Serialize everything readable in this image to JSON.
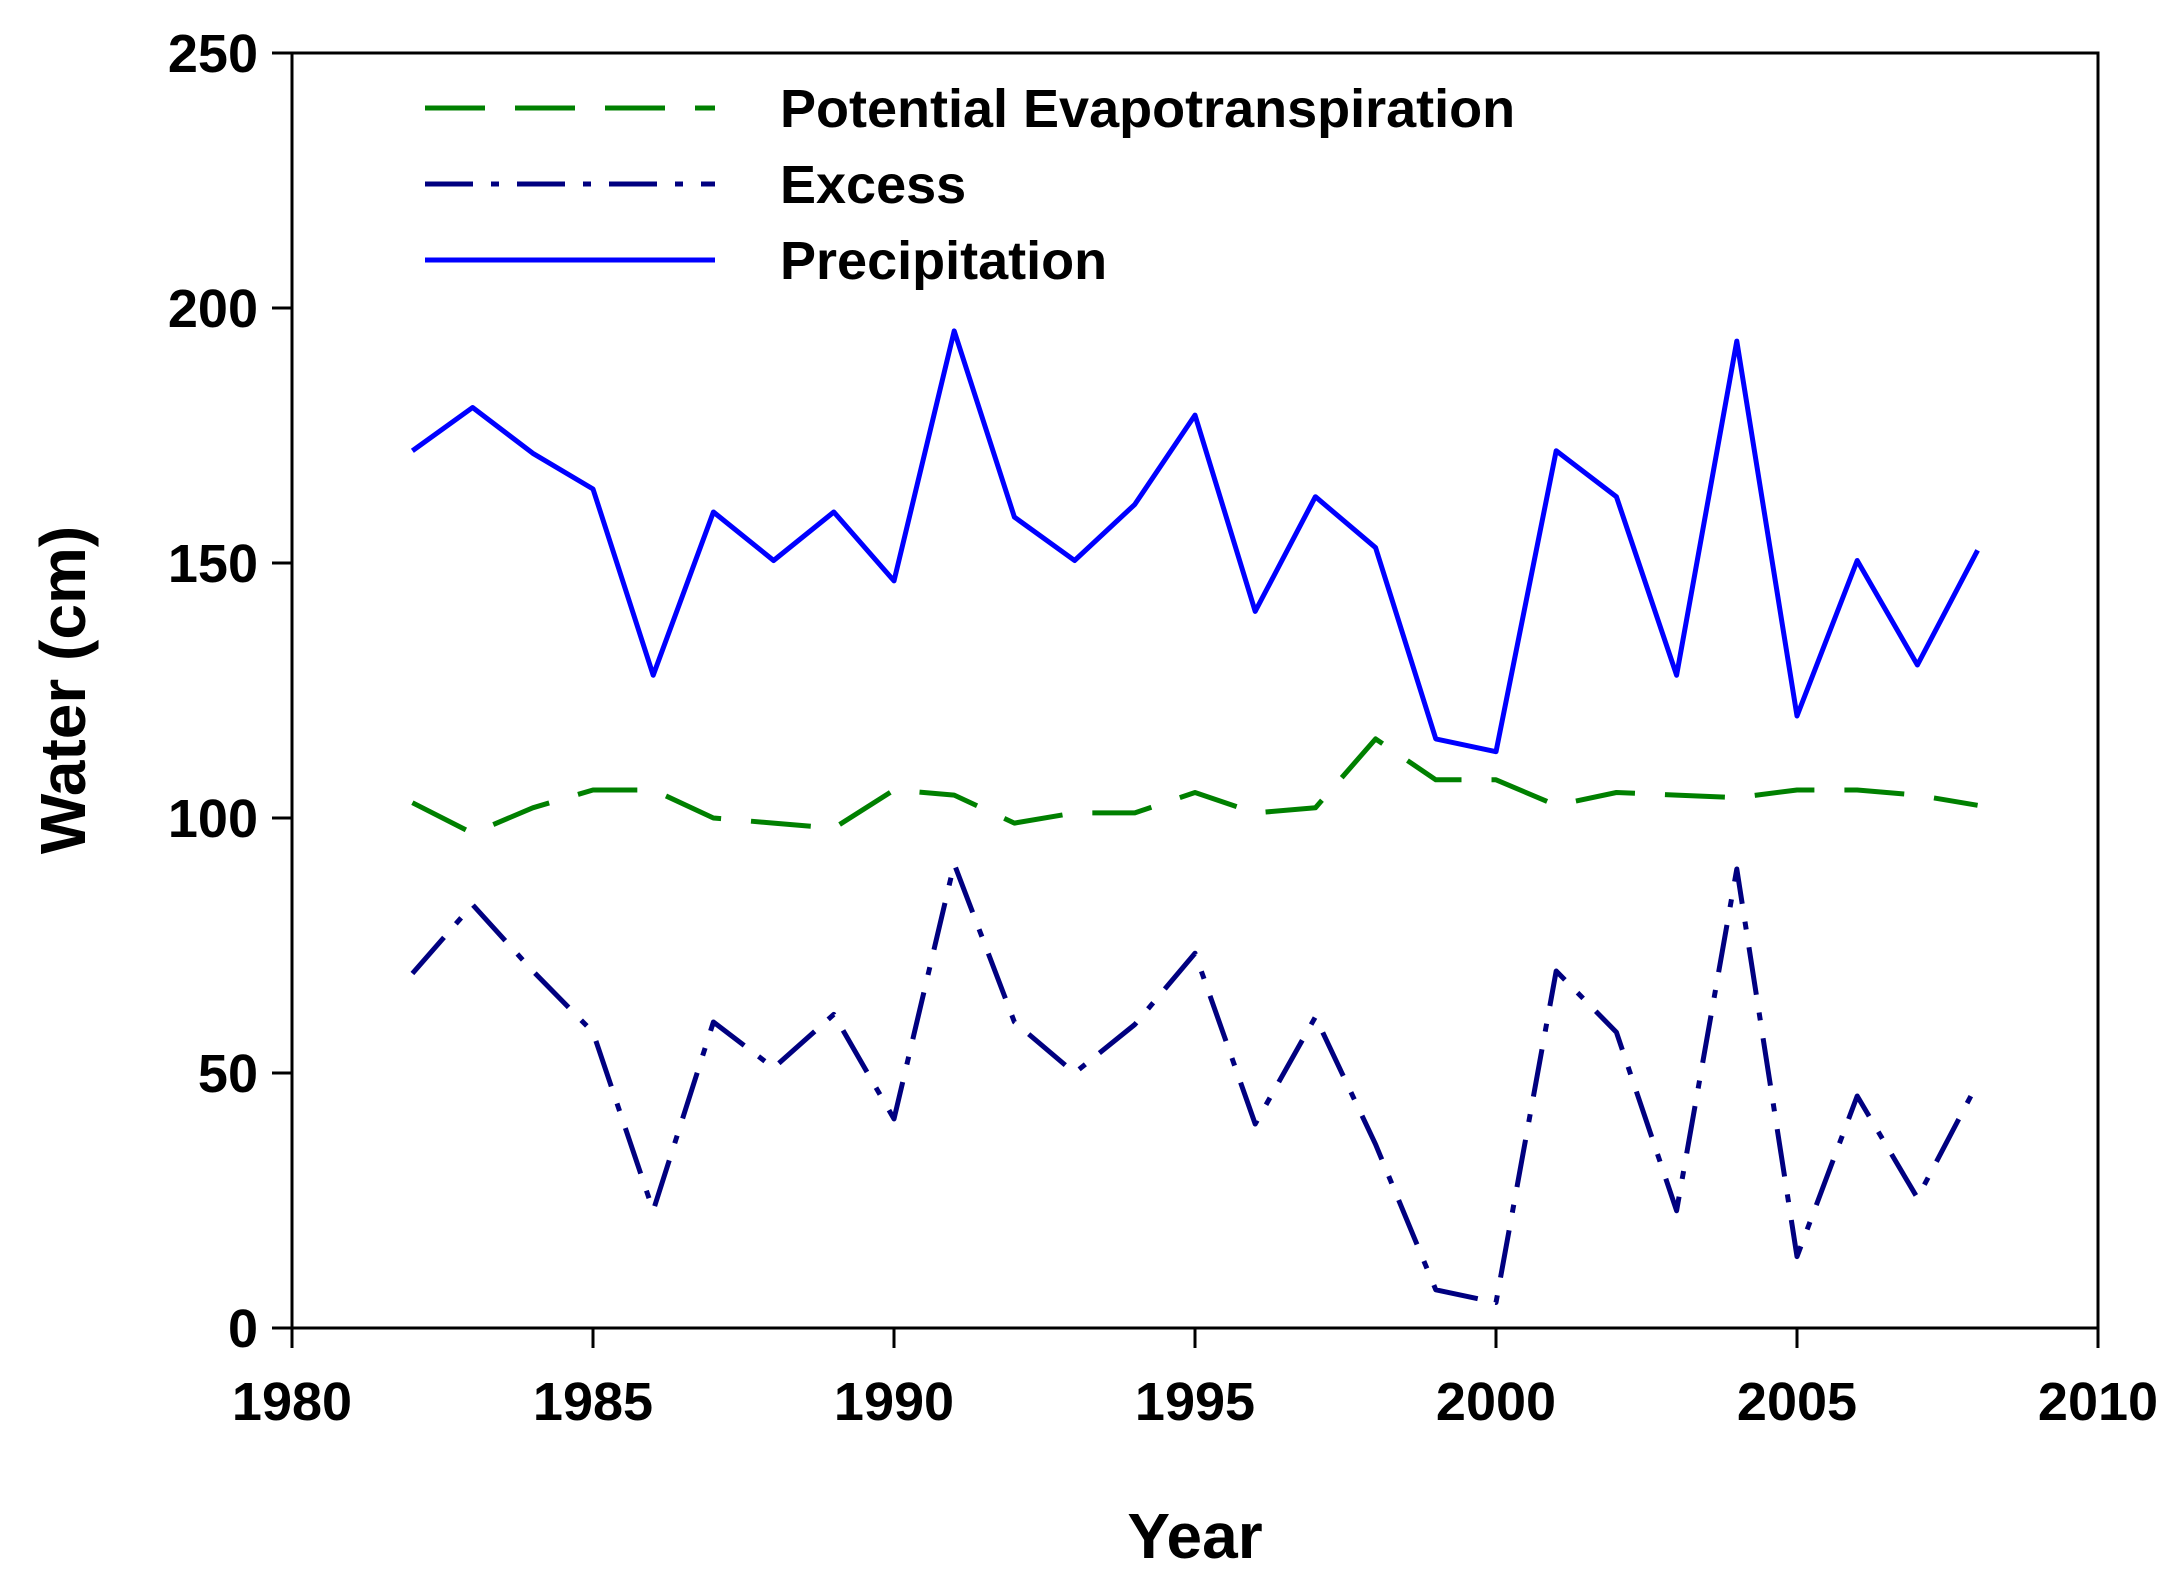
{
  "chart_data": {
    "type": "line",
    "title": "",
    "xlabel": "Year",
    "ylabel": "Water (cm)",
    "xlim": [
      1980,
      2010
    ],
    "ylim": [
      0,
      250
    ],
    "x_ticks": [
      1980,
      1985,
      1990,
      1995,
      2000,
      2005,
      2010
    ],
    "y_ticks": [
      0,
      50,
      100,
      150,
      200,
      250
    ],
    "grid": false,
    "legend_position": "top-left",
    "x": [
      1982,
      1983,
      1984,
      1985,
      1986,
      1987,
      1988,
      1989,
      1990,
      1991,
      1992,
      1993,
      1994,
      1995,
      1996,
      1997,
      1998,
      1999,
      2000,
      2001,
      2002,
      2003,
      2004,
      2005,
      2006,
      2007,
      2008
    ],
    "series": [
      {
        "name": "Potential Evapotranspiration",
        "color": "#008000",
        "style": "dashed",
        "values": [
          103,
          97,
          102,
          105.5,
          105.5,
          100,
          99,
          98,
          105.5,
          104.5,
          99,
          101,
          101,
          105,
          101,
          102,
          115.5,
          107.5,
          107.5,
          102.5,
          105,
          104.5,
          104,
          105.5,
          105.5,
          104.5,
          102.5
        ]
      },
      {
        "name": "Excess",
        "color": "#000080",
        "style": "dash-dot",
        "values": [
          69.5,
          83,
          70,
          58,
          23,
          60,
          51,
          61.5,
          41,
          91,
          60,
          50,
          59.5,
          73.5,
          40,
          61,
          36,
          7.5,
          5,
          70,
          58,
          23,
          90,
          14,
          45.5,
          25.5,
          48
        ]
      },
      {
        "name": "Precipitation",
        "color": "#0000ff",
        "style": "solid",
        "values": [
          172,
          180.5,
          171.5,
          164.5,
          128,
          160,
          150.5,
          160,
          146.5,
          195.5,
          159,
          150.5,
          161.5,
          179,
          140.5,
          163,
          153,
          115.5,
          113,
          172,
          163,
          128,
          193.5,
          120,
          150.5,
          130,
          152.5
        ]
      }
    ]
  }
}
